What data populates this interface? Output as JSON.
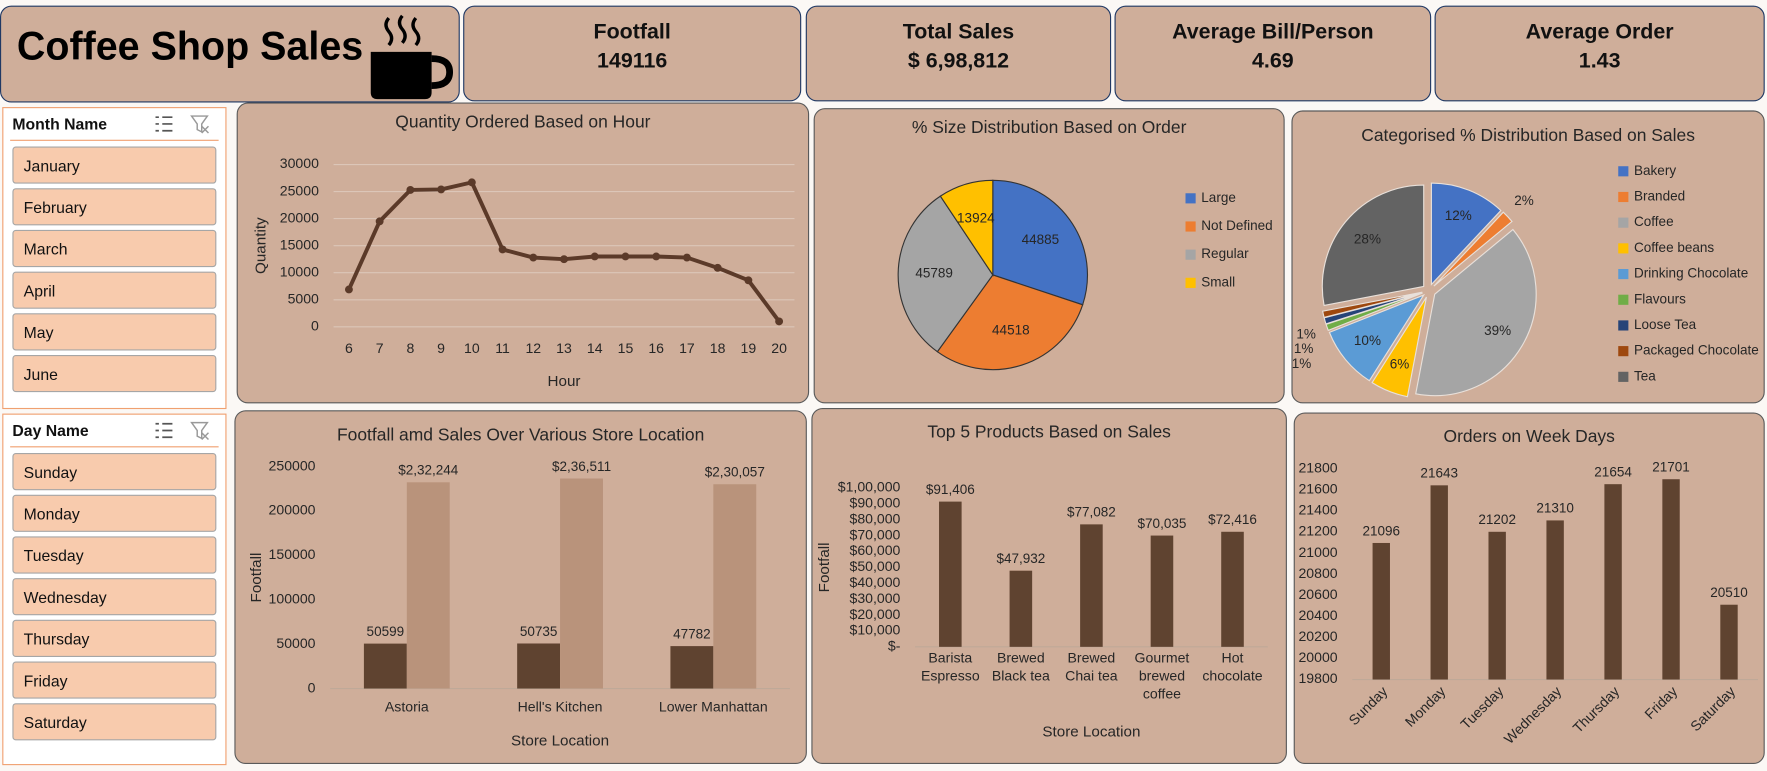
{
  "header": {
    "title": "Coffee Shop Sales"
  },
  "kpis": [
    {
      "label": "Footfall",
      "value": 149116
    },
    {
      "label": "Total Sales",
      "value": "$ 6,98,812"
    },
    {
      "label": "Average Bill/Person",
      "value": 4.69
    },
    {
      "label": "Average Order",
      "value": 1.43
    }
  ],
  "slicers": [
    {
      "title": "Month Name",
      "items": [
        "January",
        "February",
        "March",
        "April",
        "May",
        "June"
      ]
    },
    {
      "title": "Day Name",
      "items": [
        "Sunday",
        "Monday",
        "Tuesday",
        "Wednesday",
        "Thursday",
        "Friday",
        "Saturday"
      ]
    }
  ],
  "chart_data": [
    {
      "type": "line",
      "title": "Quantity Ordered Based on Hour",
      "xlabel": "Hour",
      "ylabel": "Quantity",
      "categories": [
        "6",
        "7",
        "8",
        "9",
        "10",
        "11",
        "12",
        "13",
        "14",
        "15",
        "16",
        "17",
        "18",
        "19",
        "20"
      ],
      "values": [
        6900,
        19500,
        25300,
        25400,
        26700,
        14300,
        12800,
        12500,
        13000,
        13000,
        13000,
        12800,
        10900,
        8600,
        1000
      ],
      "color": "#5b3a29",
      "ylim": [
        0,
        30000
      ],
      "yticks": [
        0,
        5000,
        10000,
        15000,
        20000,
        25000,
        30000
      ],
      "grid": true
    },
    {
      "type": "pie",
      "title": "% Size Distribution Based on Order",
      "categories": [
        "Large",
        "Not Defined",
        "Regular",
        "Small"
      ],
      "values": [
        44885,
        44518,
        45789,
        13924
      ],
      "colors": [
        "#4472c4",
        "#ed7d31",
        "#a5a5a5",
        "#ffc000"
      ],
      "legend": "right"
    },
    {
      "type": "pie",
      "title": "Categorised % Distribution Based on Sales",
      "categories": [
        "Bakery",
        "Branded",
        "Coffee",
        "Coffee beans",
        "Drinking Chocolate",
        "Flavours",
        "Loose Tea",
        "Packaged Chocolate",
        "Tea"
      ],
      "values": [
        12,
        2,
        39,
        6,
        10,
        1,
        1,
        1,
        28
      ],
      "value_labels": [
        "12%",
        "2%",
        "39%",
        "6%",
        "10%",
        "1%",
        "1%",
        "1%",
        "28%"
      ],
      "colors": [
        "#4472c4",
        "#ed7d31",
        "#a5a5a5",
        "#ffc000",
        "#5b9bd5",
        "#70ad47",
        "#264478",
        "#9e480e",
        "#636363"
      ],
      "exploded": true,
      "legend": "right"
    },
    {
      "type": "bar",
      "title": "Footfall amd Sales Over Various Store Location",
      "xlabel": "Store Location",
      "ylabel": "Footfall",
      "categories": [
        "Astoria",
        "Hell's Kitchen",
        "Lower Manhattan"
      ],
      "series": [
        {
          "color": "#5f4330",
          "values": [
            50599,
            50735,
            47782
          ]
        },
        {
          "color": "#b9937b",
          "values": [
            232244,
            236511,
            230057
          ],
          "value_labels": [
            "$2,32,244",
            "$2,36,511",
            "$2,30,057"
          ]
        }
      ],
      "ylim": [
        0,
        250000
      ],
      "yticks": [
        0,
        50000,
        100000,
        150000,
        200000,
        250000
      ],
      "grid": false
    },
    {
      "type": "bar",
      "title": "Top 5 Products Based on Sales",
      "xlabel": "Store Location",
      "ylabel": "Footfall",
      "categories": [
        "Barista Espresso",
        "Brewed Black tea",
        "Brewed Chai tea",
        "Gourmet brewed coffee",
        "Hot chocolate"
      ],
      "values": [
        91406,
        47932,
        77082,
        70035,
        72416
      ],
      "value_labels": [
        "$91,406",
        "$47,932",
        "$77,082",
        "$70,035",
        "$72,416"
      ],
      "color": "#5f4330",
      "ylim": [
        0,
        100000
      ],
      "yticks": [
        {
          "value": 0,
          "label": "$-"
        },
        {
          "value": 10000,
          "label": "$10,000"
        },
        {
          "value": 20000,
          "label": "$20,000"
        },
        {
          "value": 30000,
          "label": "$30,000"
        },
        {
          "value": 40000,
          "label": "$40,000"
        },
        {
          "value": 50000,
          "label": "$50,000"
        },
        {
          "value": 60000,
          "label": "$60,000"
        },
        {
          "value": 70000,
          "label": "$70,000"
        },
        {
          "value": 80000,
          "label": "$80,000"
        },
        {
          "value": 90000,
          "label": "$90,000"
        },
        {
          "value": 100000,
          "label": "$1,00,000"
        }
      ],
      "grid": false
    },
    {
      "type": "bar",
      "title": "Orders on Week Days",
      "categories": [
        "Sunday",
        "Monday",
        "Tuesday",
        "Wednesday",
        "Thursday",
        "Friday",
        "Saturday"
      ],
      "values": [
        21096,
        21643,
        21202,
        21310,
        21654,
        21701,
        20510
      ],
      "color": "#5f4330",
      "ylim": [
        19800,
        21800
      ],
      "yticks": [
        19800,
        20000,
        20200,
        20400,
        20600,
        20800,
        21000,
        21200,
        21400,
        21600,
        21800
      ],
      "grid": false
    }
  ]
}
